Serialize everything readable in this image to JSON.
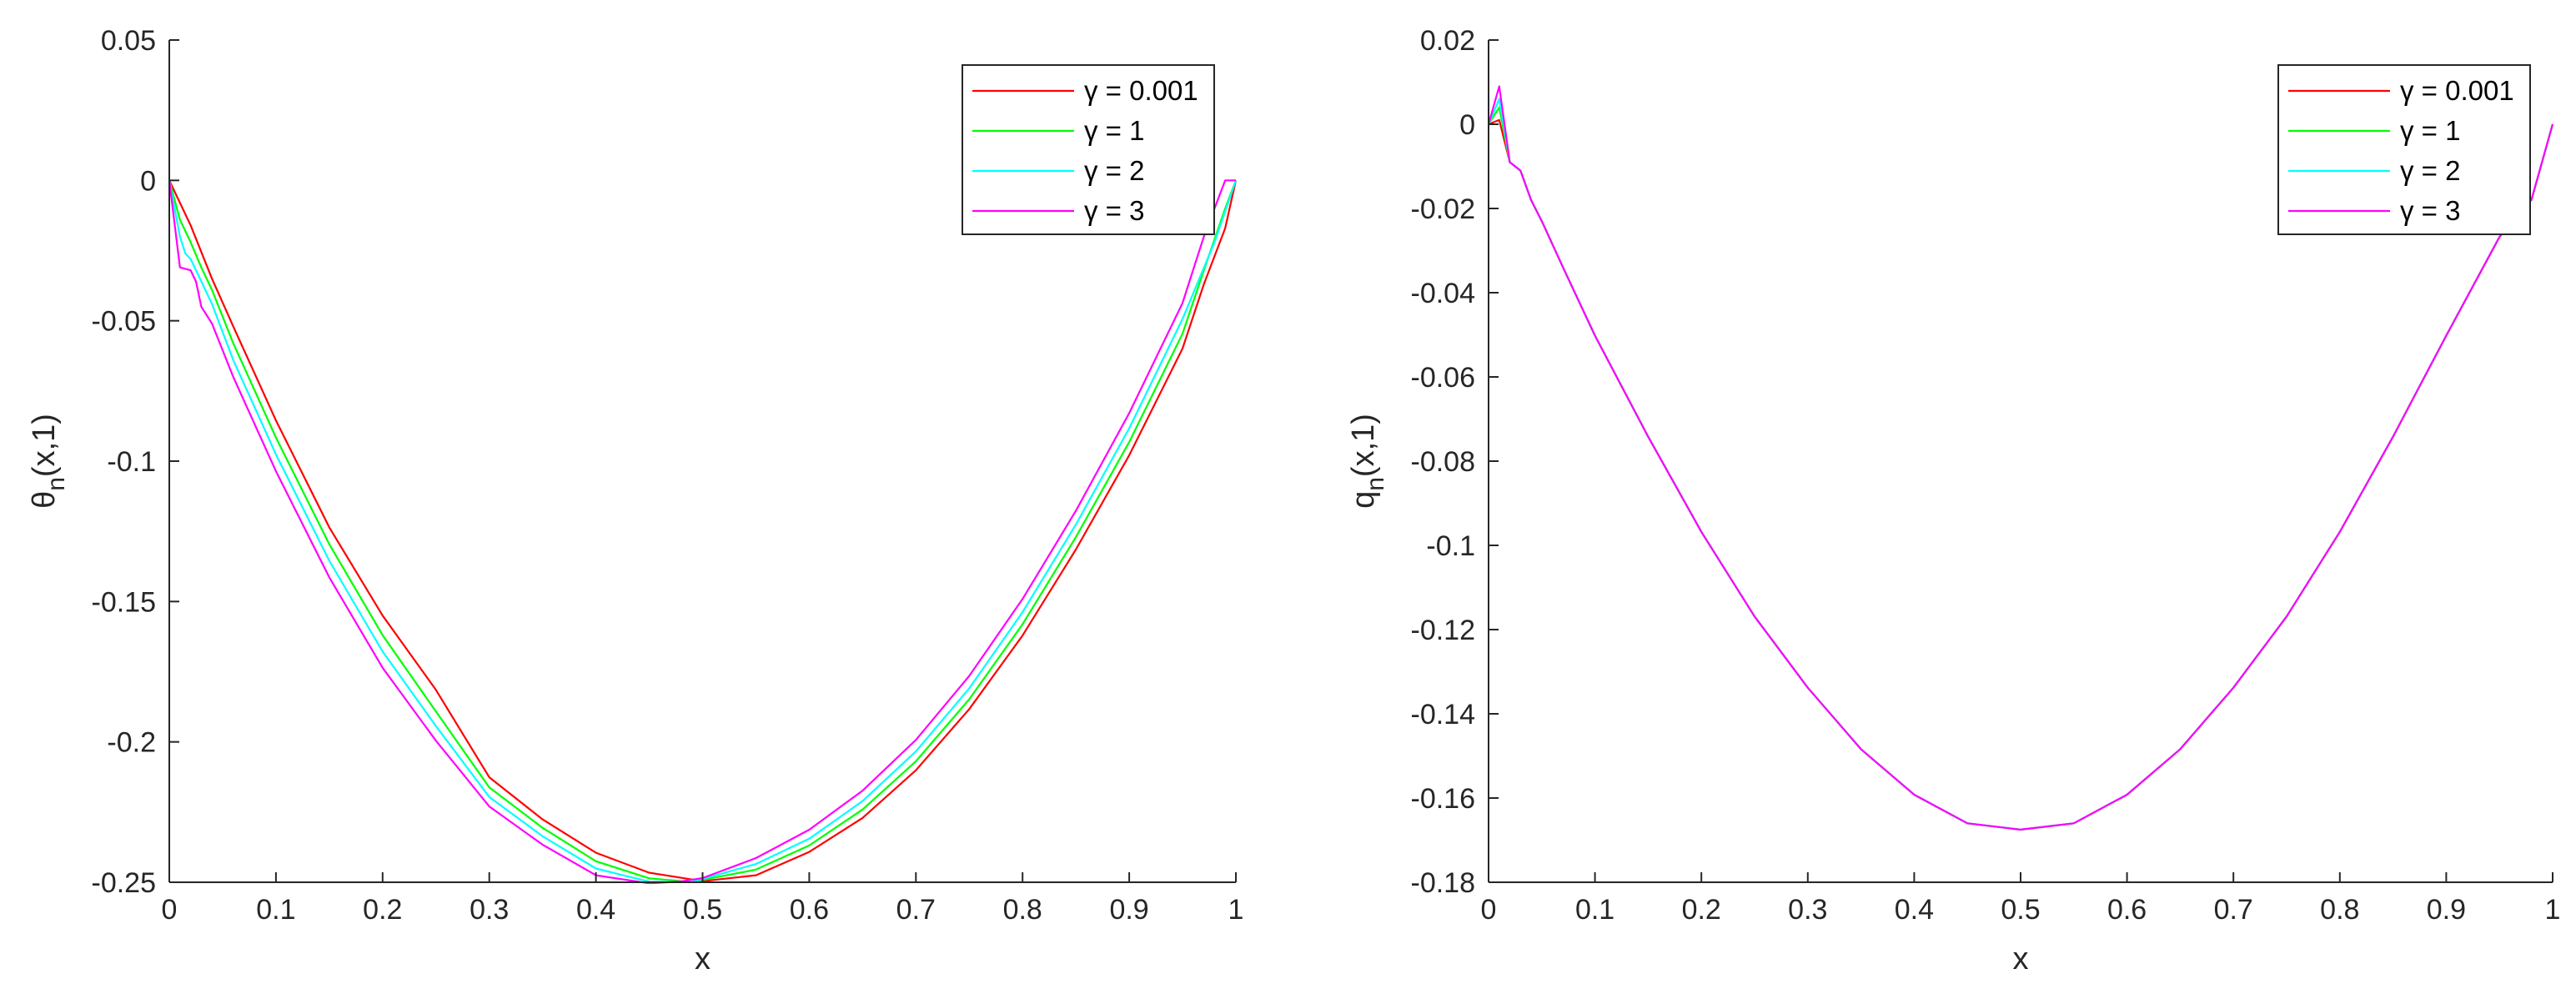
{
  "chart_data": [
    {
      "type": "line",
      "xlabel": "x",
      "ylabel": "θ_n(x,1)",
      "xlim": [
        0,
        1
      ],
      "ylim": [
        -0.25,
        0.05
      ],
      "xticks": [
        0,
        0.1,
        0.2,
        0.3,
        0.4,
        0.5,
        0.6,
        0.7,
        0.8,
        0.9,
        1
      ],
      "xtick_labels": [
        "0",
        "0.1",
        "0.2",
        "0.3",
        "0.4",
        "0.5",
        "0.6",
        "0.7",
        "0.8",
        "0.9",
        "1"
      ],
      "yticks": [
        -0.25,
        -0.2,
        -0.15,
        -0.1,
        -0.05,
        0,
        0.05
      ],
      "ytick_labels": [
        "-0.25",
        "-0.2",
        "-0.15",
        "-0.1",
        "-0.05",
        "0",
        "0.05"
      ],
      "legend_position": "top-right",
      "grid": false,
      "series": [
        {
          "name": "γ = 0.001",
          "color": "#ff0000",
          "x": [
            0,
            0.02,
            0.04,
            0.06,
            0.1,
            0.15,
            0.2,
            0.25,
            0.3,
            0.35,
            0.4,
            0.45,
            0.5,
            0.55,
            0.6,
            0.65,
            0.7,
            0.75,
            0.8,
            0.85,
            0.9,
            0.95,
            0.97,
            0.99,
            1
          ],
          "y": [
            0,
            -0.016,
            -0.035,
            -0.052,
            -0.0855,
            -0.1236,
            -0.155,
            -0.1815,
            -0.2126,
            -0.2276,
            -0.2395,
            -0.2466,
            -0.2496,
            -0.2475,
            -0.2392,
            -0.2271,
            -0.2101,
            -0.1883,
            -0.1621,
            -0.1315,
            -0.0979,
            -0.0599,
            -0.037,
            -0.017,
            0
          ]
        },
        {
          "name": "γ = 1",
          "color": "#00ff00",
          "x": [
            0,
            0.01,
            0.02,
            0.03,
            0.04,
            0.06,
            0.1,
            0.15,
            0.2,
            0.25,
            0.3,
            0.35,
            0.4,
            0.45,
            0.49,
            0.55,
            0.6,
            0.65,
            0.7,
            0.75,
            0.8,
            0.85,
            0.9,
            0.95,
            0.97,
            0.99,
            1
          ],
          "y": [
            0,
            -0.014,
            -0.022,
            -0.031,
            -0.039,
            -0.058,
            -0.0916,
            -0.1296,
            -0.162,
            -0.1892,
            -0.2162,
            -0.2306,
            -0.2425,
            -0.2486,
            -0.2499,
            -0.2455,
            -0.2369,
            -0.2241,
            -0.2069,
            -0.1848,
            -0.1581,
            -0.1271,
            -0.0932,
            -0.0546,
            -0.032,
            -0.01,
            0
          ]
        },
        {
          "name": "γ = 2",
          "color": "#00ffff",
          "x": [
            0,
            0.01,
            0.015,
            0.02,
            0.03,
            0.04,
            0.06,
            0.1,
            0.15,
            0.2,
            0.25,
            0.3,
            0.35,
            0.4,
            0.45,
            0.49,
            0.55,
            0.6,
            0.65,
            0.7,
            0.75,
            0.8,
            0.85,
            0.9,
            0.95,
            0.98,
            1
          ],
          "y": [
            0,
            -0.02,
            -0.026,
            -0.028,
            -0.036,
            -0.044,
            -0.064,
            -0.0976,
            -0.1355,
            -0.1678,
            -0.1944,
            -0.2196,
            -0.2336,
            -0.2451,
            -0.2498,
            -0.2499,
            -0.2435,
            -0.2345,
            -0.2211,
            -0.2034,
            -0.1809,
            -0.1538,
            -0.1226,
            -0.0883,
            -0.0494,
            -0.022,
            0
          ]
        },
        {
          "name": "γ = 3",
          "color": "#ff00ff",
          "x": [
            0,
            0.01,
            0.02,
            0.025,
            0.03,
            0.04,
            0.06,
            0.1,
            0.15,
            0.2,
            0.25,
            0.3,
            0.35,
            0.4,
            0.45,
            0.48,
            0.5,
            0.55,
            0.6,
            0.65,
            0.7,
            0.75,
            0.8,
            0.85,
            0.9,
            0.95,
            0.97,
            0.99,
            1
          ],
          "y": [
            0,
            -0.031,
            -0.032,
            -0.036,
            -0.045,
            -0.051,
            -0.07,
            -0.1036,
            -0.1414,
            -0.1736,
            -0.1996,
            -0.223,
            -0.2366,
            -0.2475,
            -0.2504,
            -0.2497,
            -0.2485,
            -0.2414,
            -0.2313,
            -0.2174,
            -0.1993,
            -0.1765,
            -0.1491,
            -0.1177,
            -0.0829,
            -0.0437,
            -0.02,
            0,
            0
          ]
        }
      ]
    },
    {
      "type": "line",
      "xlabel": "x",
      "ylabel": "q_n(x,1)",
      "xlim": [
        0,
        1
      ],
      "ylim": [
        -0.18,
        0.02
      ],
      "xticks": [
        0,
        0.1,
        0.2,
        0.3,
        0.4,
        0.5,
        0.6,
        0.7,
        0.8,
        0.9,
        1
      ],
      "xtick_labels": [
        "0",
        "0.1",
        "0.2",
        "0.3",
        "0.4",
        "0.5",
        "0.6",
        "0.7",
        "0.8",
        "0.9",
        "1"
      ],
      "yticks": [
        -0.18,
        -0.16,
        -0.14,
        -0.12,
        -0.1,
        -0.08,
        -0.06,
        -0.04,
        -0.02,
        0,
        0.02
      ],
      "ytick_labels": [
        "-0.18",
        "-0.16",
        "-0.14",
        "-0.12",
        "-0.1",
        "-0.08",
        "-0.06",
        "-0.04",
        "-0.02",
        "0",
        "0.02"
      ],
      "legend_position": "top-right",
      "grid": false,
      "series": [
        {
          "name": "γ = 0.001",
          "color": "#ff0000",
          "x": [
            0,
            0.01,
            0.02,
            0.03,
            0.04,
            0.05,
            0.07,
            0.1,
            0.15,
            0.2,
            0.25,
            0.3,
            0.35,
            0.4,
            0.45,
            0.5,
            0.55,
            0.6,
            0.65,
            0.7,
            0.75,
            0.8,
            0.85,
            0.9,
            0.95,
            0.97,
            0.98,
            1
          ],
          "y": [
            0,
            0.001,
            -0.009,
            -0.011,
            -0.018,
            -0.023,
            -0.034,
            -0.0502,
            -0.0742,
            -0.0968,
            -0.1169,
            -0.1338,
            -0.1484,
            -0.1592,
            -0.166,
            -0.1675,
            -0.166,
            -0.1592,
            -0.1484,
            -0.1338,
            -0.1169,
            -0.0968,
            -0.0742,
            -0.0502,
            -0.0268,
            -0.02,
            -0.018,
            0
          ]
        },
        {
          "name": "γ = 1",
          "color": "#00ff00",
          "x": [
            0,
            0.01,
            0.02,
            0.03,
            0.04,
            0.05,
            0.07,
            0.1,
            0.15,
            0.2,
            0.25,
            0.3,
            0.35,
            0.4,
            0.45,
            0.5,
            0.55,
            0.6,
            0.65,
            0.7,
            0.75,
            0.8,
            0.85,
            0.9,
            0.95,
            0.97,
            0.98,
            1
          ],
          "y": [
            0,
            0.004,
            -0.009,
            -0.011,
            -0.018,
            -0.023,
            -0.034,
            -0.0502,
            -0.0742,
            -0.0968,
            -0.1169,
            -0.1338,
            -0.1484,
            -0.1592,
            -0.166,
            -0.1675,
            -0.166,
            -0.1592,
            -0.1484,
            -0.1338,
            -0.1169,
            -0.0968,
            -0.0742,
            -0.0502,
            -0.0268,
            -0.02,
            -0.018,
            0
          ]
        },
        {
          "name": "γ = 2",
          "color": "#00ffff",
          "x": [
            0,
            0.01,
            0.02,
            0.03,
            0.04,
            0.05,
            0.07,
            0.1,
            0.15,
            0.2,
            0.25,
            0.3,
            0.35,
            0.4,
            0.45,
            0.5,
            0.55,
            0.6,
            0.65,
            0.7,
            0.75,
            0.8,
            0.85,
            0.9,
            0.95,
            0.97,
            0.98,
            1
          ],
          "y": [
            0,
            0.006,
            -0.009,
            -0.011,
            -0.018,
            -0.023,
            -0.034,
            -0.0502,
            -0.0742,
            -0.0968,
            -0.1169,
            -0.1338,
            -0.1484,
            -0.1592,
            -0.166,
            -0.1675,
            -0.166,
            -0.1592,
            -0.1484,
            -0.1338,
            -0.1169,
            -0.0968,
            -0.0742,
            -0.0502,
            -0.0268,
            -0.02,
            -0.018,
            0
          ]
        },
        {
          "name": "γ = 3",
          "color": "#ff00ff",
          "x": [
            0,
            0.01,
            0.02,
            0.03,
            0.04,
            0.05,
            0.07,
            0.1,
            0.15,
            0.2,
            0.25,
            0.3,
            0.35,
            0.4,
            0.45,
            0.5,
            0.55,
            0.6,
            0.65,
            0.7,
            0.75,
            0.8,
            0.85,
            0.9,
            0.95,
            0.97,
            0.98,
            1
          ],
          "y": [
            0,
            0.009,
            -0.009,
            -0.011,
            -0.018,
            -0.023,
            -0.034,
            -0.0502,
            -0.0742,
            -0.0968,
            -0.1169,
            -0.1338,
            -0.1484,
            -0.1592,
            -0.166,
            -0.1675,
            -0.166,
            -0.1592,
            -0.1484,
            -0.1338,
            -0.1169,
            -0.0968,
            -0.0742,
            -0.0502,
            -0.0268,
            -0.02,
            -0.018,
            0
          ]
        }
      ]
    }
  ]
}
